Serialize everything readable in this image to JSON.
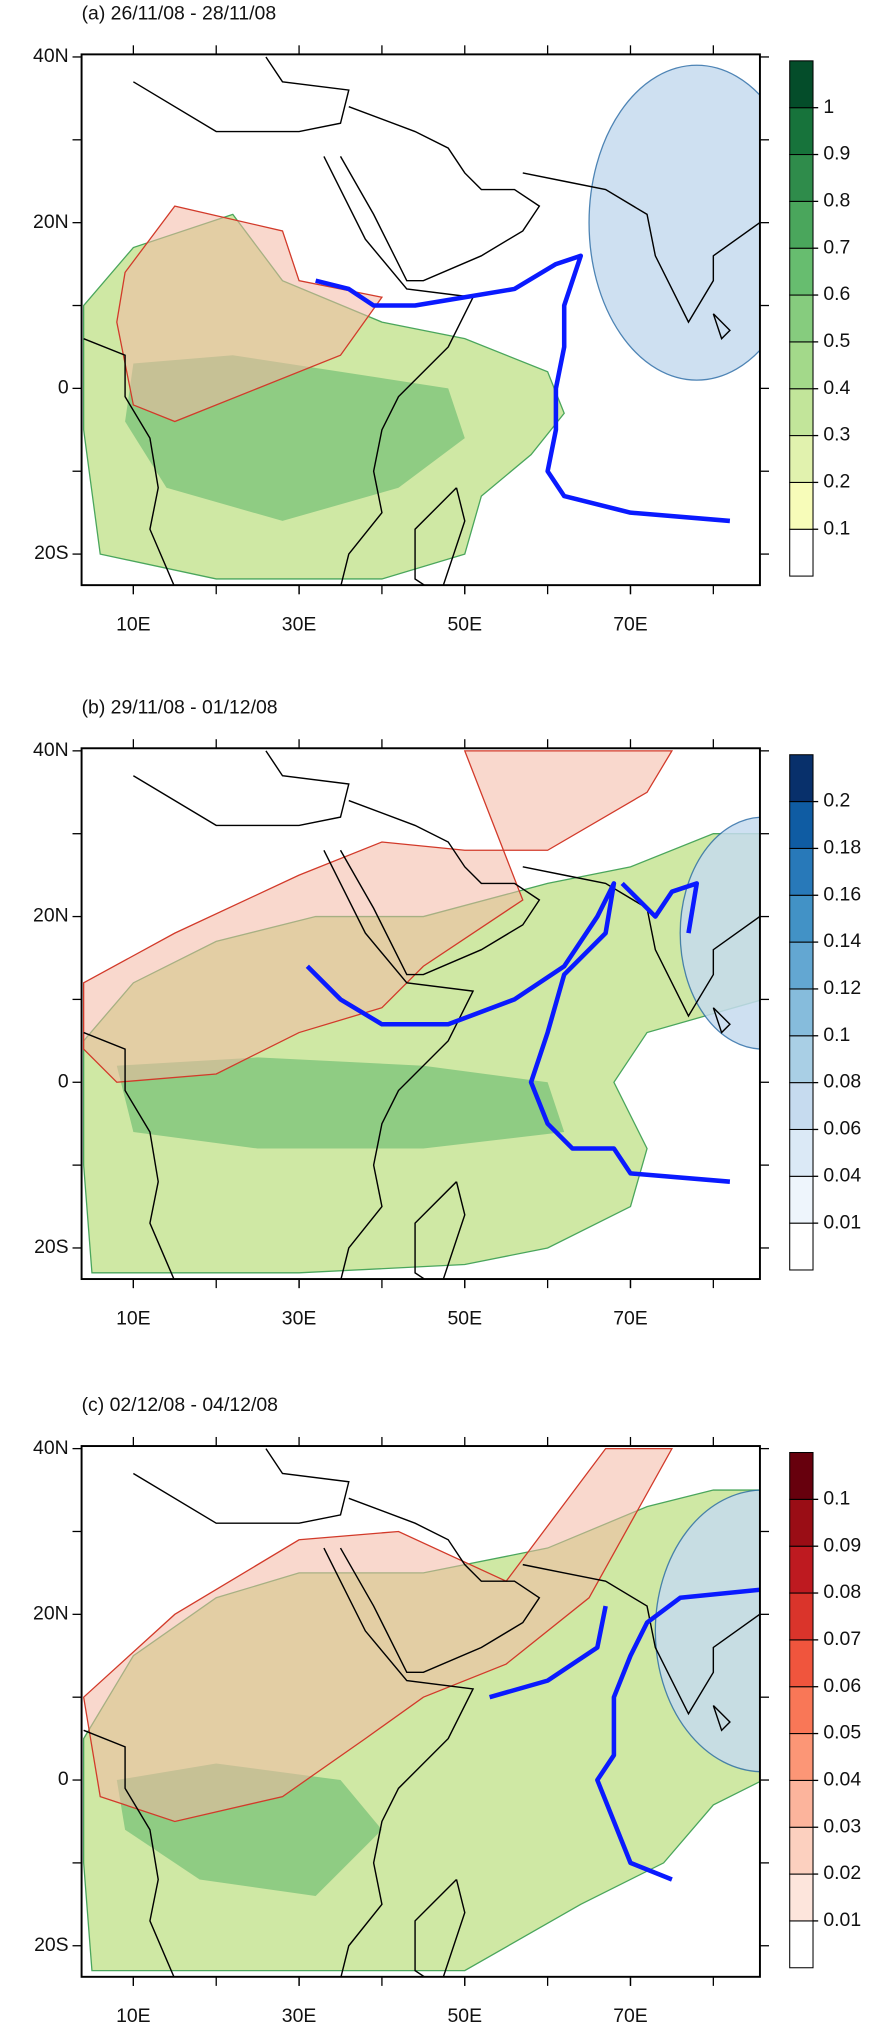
{
  "panels": [
    {
      "title": "(a) 26/11/08 - 28/11/08",
      "lat_labels": [
        "40N",
        "20N",
        "0",
        "20S"
      ],
      "lon_labels": [
        "10E",
        "30E",
        "50E",
        "70E"
      ],
      "colorbar": {
        "ticks": [
          0.1,
          0.2,
          0.3,
          0.4,
          0.5,
          0.6,
          0.7,
          0.8,
          0.9,
          1
        ],
        "colors": [
          "#ffffff",
          "#f7fcb9",
          "#e1f2ae",
          "#c2e59a",
          "#a3d98a",
          "#86cc7e",
          "#67bd6f",
          "#4aa65c",
          "#2f8c4b",
          "#17733b",
          "#044d2a"
        ]
      }
    },
    {
      "title": "(b) 29/11/08 - 01/12/08",
      "lat_labels": [
        "40N",
        "20N",
        "0",
        "20S"
      ],
      "lon_labels": [
        "10E",
        "30E",
        "50E",
        "70E"
      ],
      "colorbar": {
        "ticks": [
          0.01,
          0.04,
          0.06,
          0.08,
          0.1,
          0.12,
          0.14,
          0.16,
          0.18,
          0.2
        ],
        "colors": [
          "#ffffff",
          "#eef5fc",
          "#dbe9f6",
          "#c6dbef",
          "#a9cfe5",
          "#86bcdc",
          "#63a7d2",
          "#4292c6",
          "#2879b9",
          "#0f5ca3",
          "#08306b"
        ]
      }
    },
    {
      "title": "(c) 02/12/08 - 04/12/08",
      "lat_labels": [
        "40N",
        "20N",
        "0",
        "20S"
      ],
      "lon_labels": [
        "10E",
        "30E",
        "50E",
        "70E"
      ],
      "colorbar": {
        "ticks": [
          0.01,
          0.02,
          0.03,
          0.04,
          0.05,
          0.06,
          0.07,
          0.08,
          0.09,
          0.1
        ],
        "colors": [
          "#ffffff",
          "#fde5dc",
          "#fcd0bf",
          "#fcb49c",
          "#fc9676",
          "#f97757",
          "#f0553d",
          "#da342b",
          "#be1a20",
          "#9a0d15",
          "#67000d"
        ]
      }
    }
  ]
}
